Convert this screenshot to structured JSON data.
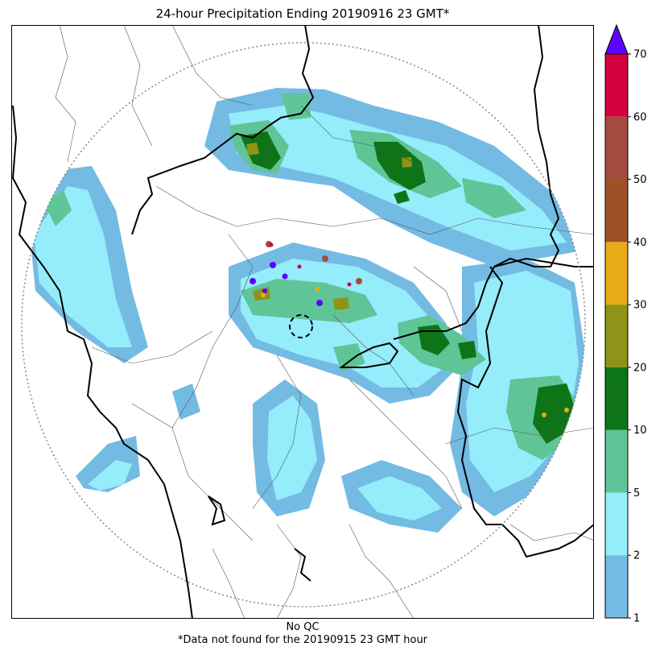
{
  "title": "24-hour Precipitation Ending 20190916 23 GMT*",
  "footer": {
    "qc_note": "No QC",
    "missing_note": "*Data not found for the 20190915 23 GMT hour"
  },
  "colorbar": {
    "levels": [
      "1",
      "2",
      "5",
      "10",
      "20",
      "30",
      "40",
      "50",
      "60",
      "70"
    ],
    "colors": [
      "#74bbe3",
      "#95ecfb",
      "#5fc597",
      "#0e7417",
      "#8e9418",
      "#e6ab16",
      "#9c5127",
      "#a44b3f",
      "#d4003f"
    ],
    "over_color": "#5a04ff",
    "extend": "max"
  },
  "colors": {
    "border": "#000000",
    "district_line": "#555555",
    "range_ring": "#888888"
  }
}
